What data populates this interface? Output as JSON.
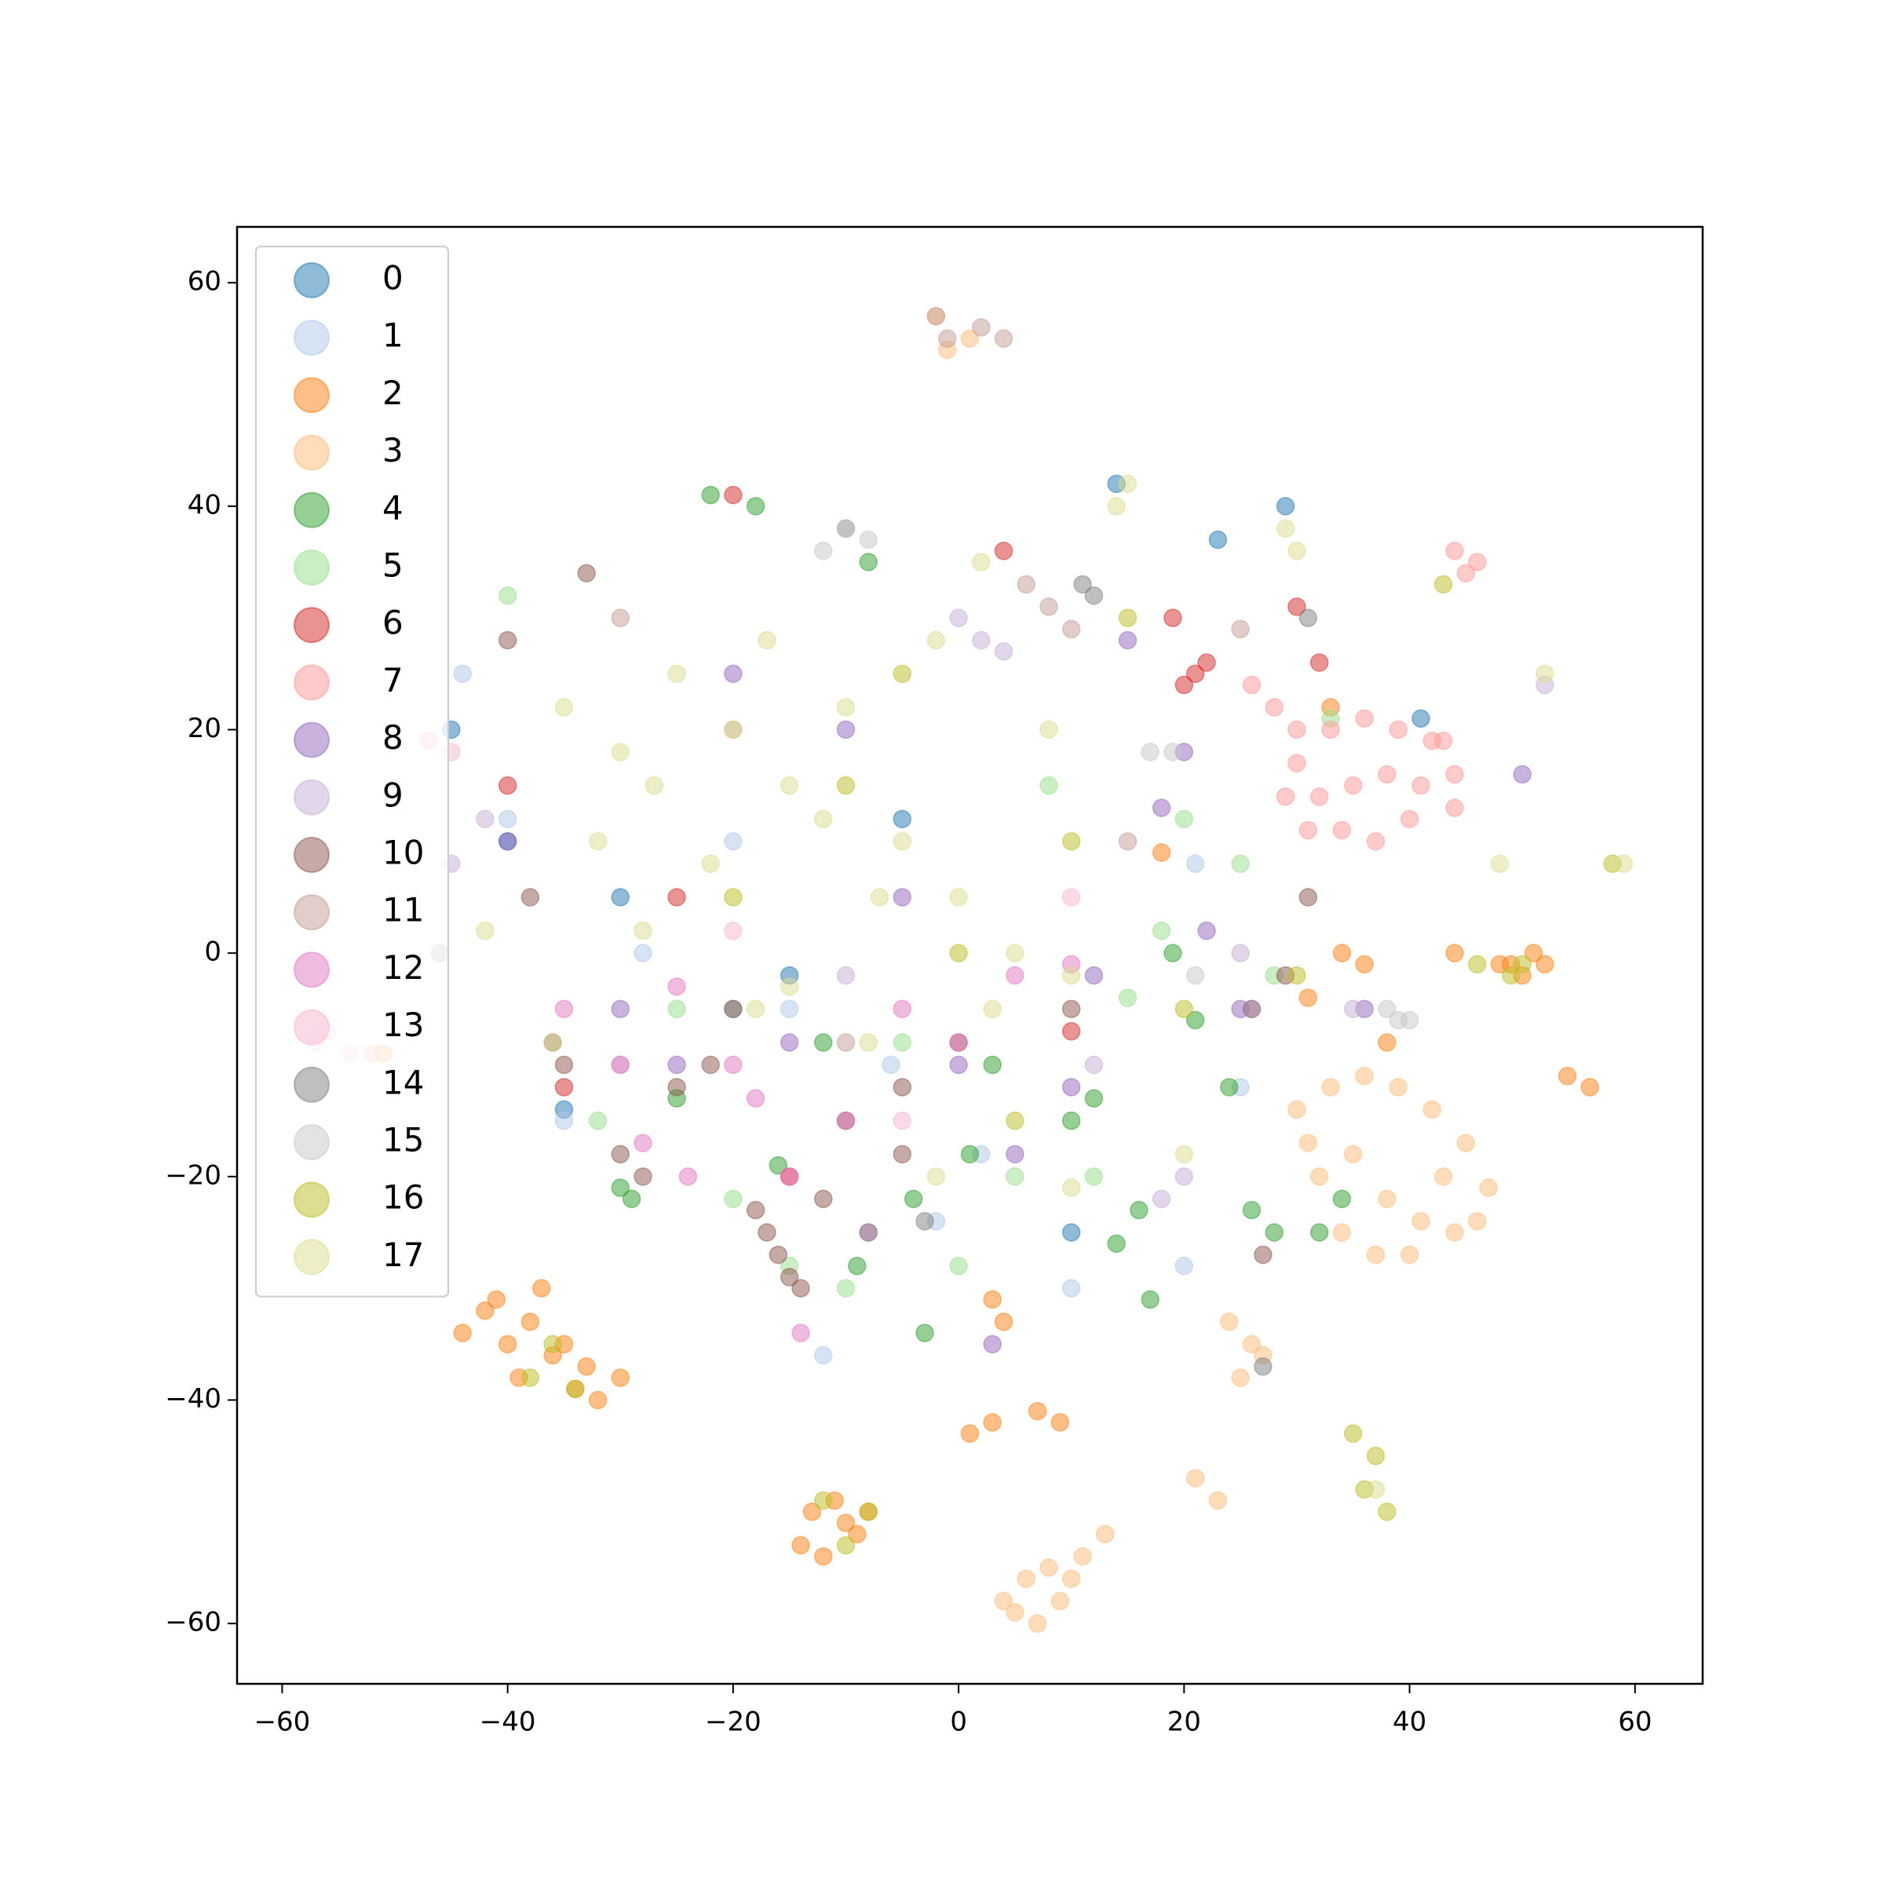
{
  "chart_data": {
    "type": "scatter",
    "legend": "upper left",
    "alpha": 0.5,
    "xlim": [
      -64,
      66
    ],
    "ylim": [
      -65.4,
      65
    ],
    "xticks": [
      {
        "value": -60,
        "label": "−60"
      },
      {
        "value": -40,
        "label": "−40"
      },
      {
        "value": -20,
        "label": "−20"
      },
      0,
      20,
      40,
      60
    ],
    "yticks": [
      {
        "value": -60,
        "label": "−60"
      },
      {
        "value": -40,
        "label": "−40"
      },
      {
        "value": -20,
        "label": "−20"
      },
      0,
      20,
      40,
      60
    ],
    "series": [
      {
        "name": "0",
        "color": "#1f77b4",
        "x": [
          -45,
          -40,
          -35,
          -30,
          14,
          29,
          41,
          23,
          -15,
          -5,
          10
        ],
        "y": [
          20,
          10,
          -14,
          5,
          42,
          40,
          21,
          37,
          -2,
          12,
          -25
        ]
      },
      {
        "name": "1",
        "color": "#aec7e8",
        "x": [
          -44,
          -40,
          -35,
          -28,
          -12,
          -6,
          2,
          10,
          20,
          -20,
          -15,
          -2,
          21,
          25
        ],
        "y": [
          25,
          12,
          -15,
          0,
          -36,
          -10,
          -18,
          -30,
          -28,
          10,
          -5,
          -24,
          8,
          -12
        ]
      },
      {
        "name": "2",
        "color": "#ff7f0e",
        "x": [
          -42,
          -40,
          -38,
          -36,
          -34,
          -32,
          -44,
          -39,
          -35,
          -37,
          -41,
          -33,
          -30,
          -13,
          -11,
          -9,
          -12,
          -10,
          -14,
          -8,
          49,
          51,
          50,
          48,
          52,
          54,
          56,
          34,
          36,
          3,
          4,
          7,
          9,
          3,
          1,
          44,
          31,
          38,
          -51,
          18,
          33
        ],
        "y": [
          -32,
          -35,
          -33,
          -36,
          -39,
          -40,
          -34,
          -38,
          -35,
          -30,
          -31,
          -37,
          -38,
          -50,
          -49,
          -52,
          -54,
          -51,
          -53,
          -50,
          -1,
          0,
          -2,
          -1,
          -1,
          -11,
          -12,
          0,
          -1,
          -31,
          -33,
          -41,
          -42,
          -42,
          -43,
          0,
          -4,
          -8,
          -9,
          9,
          22
        ]
      },
      {
        "name": "3",
        "color": "#ffbb78",
        "x": [
          30,
          33,
          36,
          39,
          42,
          45,
          47,
          32,
          35,
          38,
          41,
          44,
          37,
          40,
          34,
          43,
          31,
          46,
          4,
          6,
          8,
          10,
          5,
          9,
          7,
          11,
          13,
          24,
          26,
          25,
          27,
          21,
          23,
          -2,
          1,
          -1
        ],
        "y": [
          -14,
          -12,
          -11,
          -12,
          -14,
          -17,
          -21,
          -20,
          -18,
          -22,
          -24,
          -25,
          -27,
          -27,
          -25,
          -20,
          -17,
          -24,
          -58,
          -56,
          -55,
          -56,
          -59,
          -58,
          -60,
          -54,
          -52,
          -33,
          -35,
          -38,
          -36,
          -47,
          -49,
          57,
          55,
          54
        ]
      },
      {
        "name": "4",
        "color": "#2ca02c",
        "x": [
          -22,
          -18,
          -16,
          -8,
          -3,
          10,
          12,
          16,
          17,
          19,
          21,
          24,
          26,
          28,
          32,
          34,
          -30,
          -25,
          -12,
          -4,
          1,
          3,
          -9,
          14,
          -29
        ],
        "y": [
          41,
          40,
          -19,
          35,
          -34,
          -15,
          -13,
          -23,
          -31,
          0,
          -6,
          -12,
          -23,
          -25,
          -25,
          -22,
          -21,
          -13,
          -8,
          -22,
          -18,
          -10,
          -28,
          -26,
          -22
        ]
      },
      {
        "name": "5",
        "color": "#98df8a",
        "x": [
          -40,
          -32,
          -25,
          -20,
          -10,
          0,
          5,
          15,
          18,
          20,
          25,
          28,
          33,
          -15,
          -5,
          8,
          12
        ],
        "y": [
          32,
          -15,
          -5,
          -22,
          -30,
          -28,
          -20,
          -4,
          2,
          12,
          8,
          -2,
          21,
          -28,
          -8,
          15,
          -20
        ]
      },
      {
        "name": "6",
        "color": "#d62728",
        "x": [
          21,
          22,
          20,
          32,
          -20,
          -15,
          -40,
          -35,
          4,
          10,
          30,
          19,
          -25
        ],
        "y": [
          25,
          26,
          24,
          26,
          41,
          -20,
          15,
          -12,
          36,
          -7,
          31,
          30,
          5
        ]
      },
      {
        "name": "7",
        "color": "#ff9896",
        "x": [
          30,
          33,
          36,
          39,
          42,
          44,
          32,
          35,
          38,
          41,
          44,
          31,
          34,
          37,
          40,
          29,
          43,
          44,
          46,
          45,
          26,
          28,
          30,
          -52,
          -47
        ],
        "y": [
          17,
          20,
          21,
          20,
          19,
          16,
          14,
          15,
          16,
          15,
          13,
          11,
          11,
          10,
          12,
          14,
          19,
          36,
          35,
          34,
          24,
          22,
          20,
          -9,
          19
        ]
      },
      {
        "name": "8",
        "color": "#9467bd",
        "x": [
          -40,
          -30,
          -20,
          -10,
          0,
          5,
          10,
          15,
          20,
          22,
          25,
          -5,
          -15,
          36,
          50,
          -25,
          3,
          12,
          18
        ],
        "y": [
          10,
          -5,
          25,
          20,
          -10,
          -18,
          -12,
          28,
          18,
          2,
          -5,
          5,
          -8,
          -5,
          16,
          -10,
          -35,
          -2,
          13
        ]
      },
      {
        "name": "9",
        "color": "#c5b0d5",
        "x": [
          2,
          4,
          0,
          -10,
          20,
          25,
          18,
          -42,
          -30,
          -45,
          12,
          35,
          52
        ],
        "y": [
          28,
          27,
          30,
          -2,
          -20,
          0,
          -22,
          12,
          -10,
          8,
          -10,
          -5,
          24
        ]
      },
      {
        "name": "10",
        "color": "#8c564b",
        "x": [
          -16,
          -17,
          -15,
          -18,
          -14,
          -40,
          -35,
          -30,
          -25,
          -20,
          -10,
          -5,
          0,
          -28,
          -33,
          -38,
          10,
          27,
          31,
          29,
          -5,
          -12,
          -22,
          -36
        ],
        "y": [
          -27,
          -25,
          -29,
          -23,
          -30,
          28,
          -10,
          -18,
          -12,
          -5,
          -15,
          -12,
          -8,
          -20,
          34,
          5,
          -5,
          -27,
          5,
          -2,
          -18,
          -22,
          -10,
          -8
        ]
      },
      {
        "name": "11",
        "color": "#c49c94",
        "x": [
          8,
          6,
          10,
          2,
          4,
          -1,
          -2,
          25,
          -30,
          -20,
          -10,
          15
        ],
        "y": [
          31,
          33,
          29,
          56,
          55,
          55,
          57,
          29,
          30,
          20,
          -8,
          10
        ]
      },
      {
        "name": "12",
        "color": "#e377c2",
        "x": [
          -35,
          -30,
          -25,
          -20,
          -15,
          -10,
          -5,
          0,
          5,
          -28,
          -18,
          -8,
          -14,
          -24,
          10,
          26
        ],
        "y": [
          -5,
          -10,
          -3,
          -10,
          -20,
          -15,
          -5,
          -8,
          -2,
          -17,
          -13,
          -25,
          -34,
          -20,
          -1,
          -5
        ]
      },
      {
        "name": "13",
        "color": "#f7b6d2",
        "x": [
          -56,
          -54,
          -47,
          -45,
          -57,
          -20,
          -5,
          10
        ],
        "y": [
          -7,
          -9,
          19,
          18,
          -8,
          2,
          -15,
          5
        ]
      },
      {
        "name": "14",
        "color": "#7f7f7f",
        "x": [
          11,
          12,
          -46,
          -3,
          31,
          27,
          -8,
          -10,
          -20,
          26
        ],
        "y": [
          33,
          32,
          0,
          -24,
          30,
          -37,
          -25,
          38,
          -5,
          -5
        ]
      },
      {
        "name": "15",
        "color": "#c7c7c7",
        "x": [
          -10,
          -8,
          -12,
          39,
          40,
          19,
          17,
          38,
          21
        ],
        "y": [
          38,
          37,
          36,
          -6,
          -6,
          18,
          18,
          -5,
          -2
        ]
      },
      {
        "name": "16",
        "color": "#bcbd22",
        "x": [
          37,
          36,
          38,
          35,
          50,
          49,
          -38,
          -36,
          -34,
          -12,
          -10,
          -8,
          -20,
          -10,
          0,
          10,
          20,
          15,
          5,
          -5,
          30,
          46,
          43,
          58
        ],
        "y": [
          -45,
          -48,
          -50,
          -43,
          -1,
          -2,
          -38,
          -35,
          -39,
          -49,
          -53,
          -50,
          5,
          15,
          0,
          10,
          -5,
          30,
          -15,
          25,
          -2,
          -1,
          33,
          8
        ]
      },
      {
        "name": "17",
        "color": "#dbdb8d",
        "x": [
          -35,
          -30,
          -25,
          -20,
          -15,
          -10,
          -5,
          0,
          5,
          10,
          -32,
          -27,
          -22,
          -17,
          -12,
          -7,
          -2,
          3,
          8,
          -28,
          -18,
          -8,
          2,
          14,
          15,
          29,
          30,
          52,
          59,
          48,
          10,
          -2,
          -15,
          -36,
          -42,
          20,
          37
        ],
        "y": [
          22,
          18,
          25,
          20,
          15,
          22,
          10,
          5,
          0,
          -2,
          10,
          15,
          8,
          28,
          12,
          5,
          28,
          -5,
          20,
          2,
          -5,
          -8,
          35,
          40,
          42,
          38,
          36,
          25,
          8,
          8,
          -21,
          -20,
          -3,
          -8,
          2,
          -18,
          -48
        ]
      }
    ]
  }
}
